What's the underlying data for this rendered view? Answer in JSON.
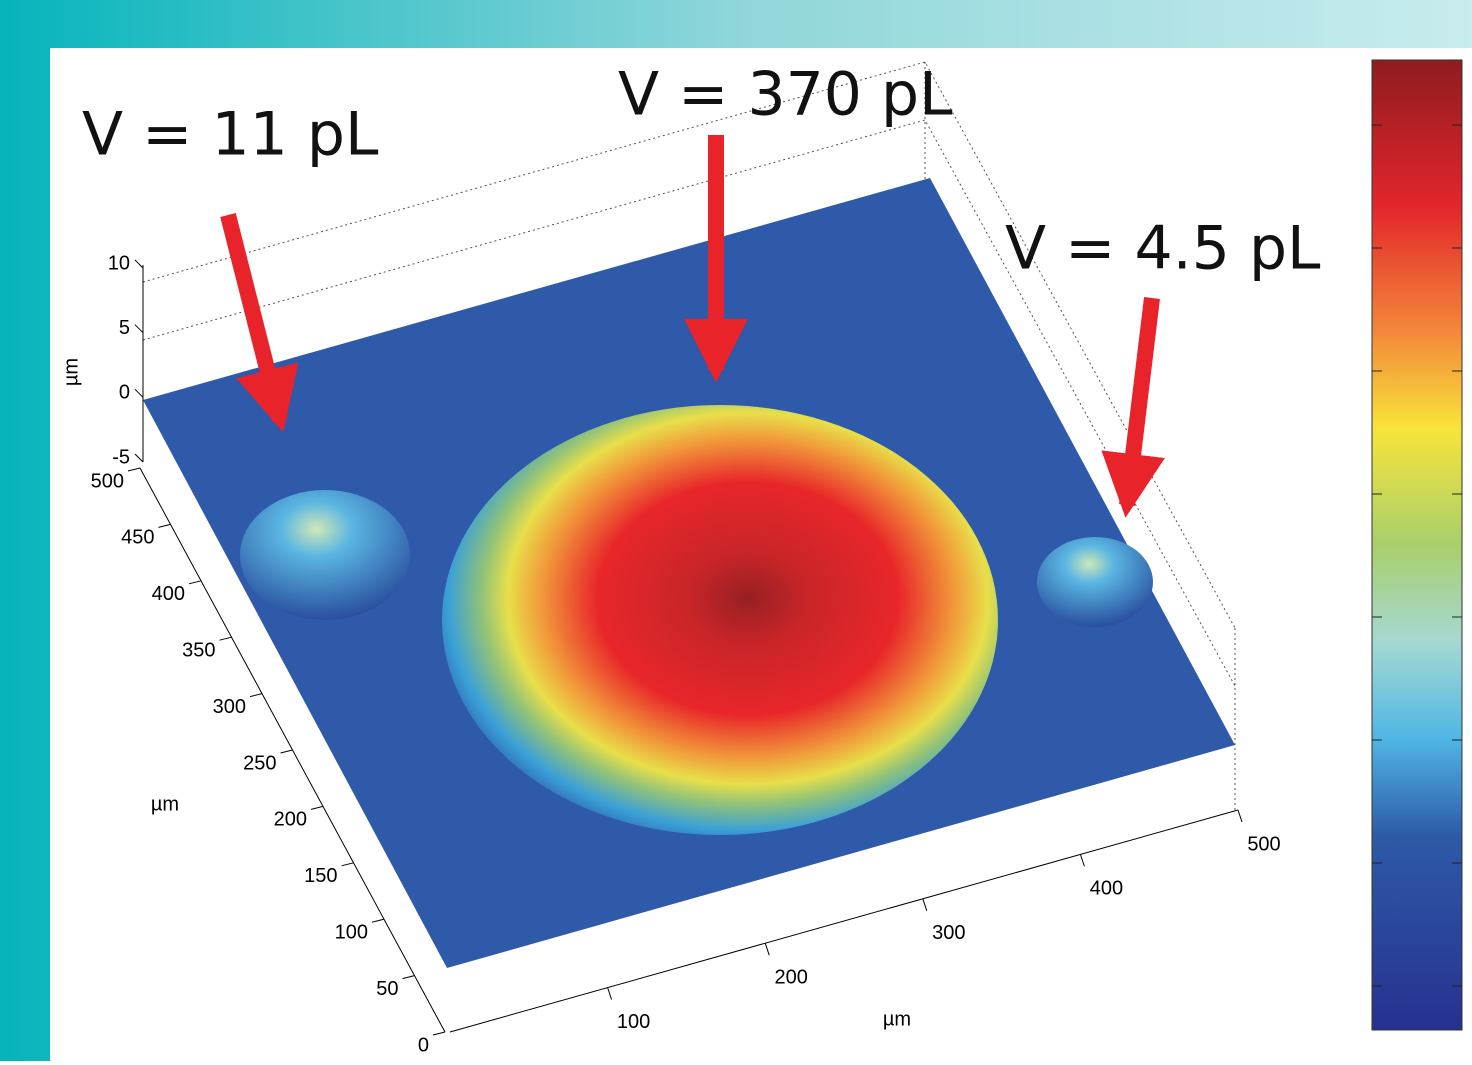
{
  "figure": {
    "annotations": [
      "V = 11 pL",
      "V = 370 pL",
      "V = 4.5 pL"
    ],
    "axes": {
      "z": {
        "label": "µm",
        "ticks": [
          10,
          5,
          0,
          -5
        ]
      },
      "y": {
        "label": "µm",
        "ticks": [
          500,
          450,
          400,
          350,
          300,
          250,
          200,
          150,
          100,
          50,
          0
        ]
      },
      "x": {
        "label": "µm",
        "ticks": [
          100,
          200,
          300,
          400,
          500
        ]
      }
    }
  }
}
